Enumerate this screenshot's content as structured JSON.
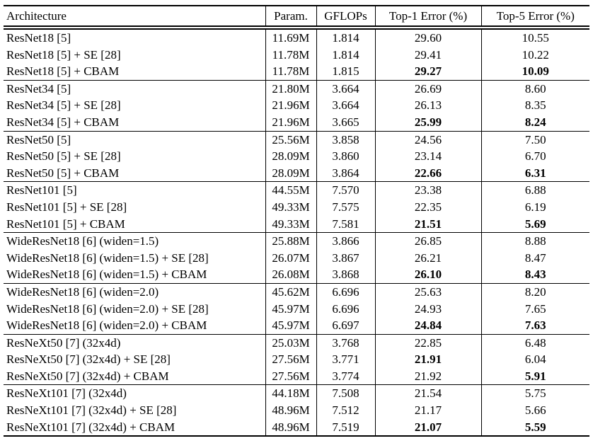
{
  "table": {
    "headers": [
      "Architecture",
      "Param.",
      "GFLOPs",
      "Top-1 Error (%)",
      "Top-5 Error (%)"
    ],
    "groups": [
      {
        "rows": [
          {
            "arch": "ResNet18 [5]",
            "param": "11.69M",
            "gflops": "1.814",
            "top1": "29.60",
            "top5": "10.55",
            "top1_bold": false,
            "top5_bold": false
          },
          {
            "arch": "ResNet18 [5] + SE [28]",
            "param": "11.78M",
            "gflops": "1.814",
            "top1": "29.41",
            "top5": "10.22",
            "top1_bold": false,
            "top5_bold": false
          },
          {
            "arch": "ResNet18 [5] + CBAM",
            "param": "11.78M",
            "gflops": "1.815",
            "top1": "29.27",
            "top5": "10.09",
            "top1_bold": true,
            "top5_bold": true
          }
        ]
      },
      {
        "rows": [
          {
            "arch": "ResNet34 [5]",
            "param": "21.80M",
            "gflops": "3.664",
            "top1": "26.69",
            "top5": "8.60",
            "top1_bold": false,
            "top5_bold": false
          },
          {
            "arch": "ResNet34 [5] + SE [28]",
            "param": "21.96M",
            "gflops": "3.664",
            "top1": "26.13",
            "top5": "8.35",
            "top1_bold": false,
            "top5_bold": false
          },
          {
            "arch": "ResNet34 [5] + CBAM",
            "param": "21.96M",
            "gflops": "3.665",
            "top1": "25.99",
            "top5": "8.24",
            "top1_bold": true,
            "top5_bold": true
          }
        ]
      },
      {
        "rows": [
          {
            "arch": "ResNet50 [5]",
            "param": "25.56M",
            "gflops": "3.858",
            "top1": "24.56",
            "top5": "7.50",
            "top1_bold": false,
            "top5_bold": false
          },
          {
            "arch": "ResNet50 [5] + SE [28]",
            "param": "28.09M",
            "gflops": "3.860",
            "top1": "23.14",
            "top5": "6.70",
            "top1_bold": false,
            "top5_bold": false
          },
          {
            "arch": "ResNet50 [5] + CBAM",
            "param": "28.09M",
            "gflops": "3.864",
            "top1": "22.66",
            "top5": "6.31",
            "top1_bold": true,
            "top5_bold": true
          }
        ]
      },
      {
        "rows": [
          {
            "arch": "ResNet101 [5]",
            "param": "44.55M",
            "gflops": "7.570",
            "top1": "23.38",
            "top5": "6.88",
            "top1_bold": false,
            "top5_bold": false
          },
          {
            "arch": "ResNet101 [5] + SE [28]",
            "param": "49.33M",
            "gflops": "7.575",
            "top1": "22.35",
            "top5": "6.19",
            "top1_bold": false,
            "top5_bold": false
          },
          {
            "arch": "ResNet101 [5] + CBAM",
            "param": "49.33M",
            "gflops": "7.581",
            "top1": "21.51",
            "top5": "5.69",
            "top1_bold": true,
            "top5_bold": true
          }
        ]
      },
      {
        "rows": [
          {
            "arch": "WideResNet18 [6] (widen=1.5)",
            "param": "25.88M",
            "gflops": "3.866",
            "top1": "26.85",
            "top5": "8.88",
            "top1_bold": false,
            "top5_bold": false
          },
          {
            "arch": "WideResNet18 [6] (widen=1.5) + SE [28]",
            "param": "26.07M",
            "gflops": "3.867",
            "top1": "26.21",
            "top5": "8.47",
            "top1_bold": false,
            "top5_bold": false
          },
          {
            "arch": "WideResNet18 [6] (widen=1.5) + CBAM",
            "param": "26.08M",
            "gflops": "3.868",
            "top1": "26.10",
            "top5": "8.43",
            "top1_bold": true,
            "top5_bold": true
          }
        ]
      },
      {
        "rows": [
          {
            "arch": "WideResNet18 [6] (widen=2.0)",
            "param": "45.62M",
            "gflops": "6.696",
            "top1": "25.63",
            "top5": "8.20",
            "top1_bold": false,
            "top5_bold": false
          },
          {
            "arch": "WideResNet18 [6] (widen=2.0) + SE [28]",
            "param": "45.97M",
            "gflops": "6.696",
            "top1": "24.93",
            "top5": "7.65",
            "top1_bold": false,
            "top5_bold": false
          },
          {
            "arch": "WideResNet18 [6] (widen=2.0) + CBAM",
            "param": "45.97M",
            "gflops": "6.697",
            "top1": "24.84",
            "top5": "7.63",
            "top1_bold": true,
            "top5_bold": true
          }
        ]
      },
      {
        "rows": [
          {
            "arch": "ResNeXt50 [7] (32x4d)",
            "param": "25.03M",
            "gflops": "3.768",
            "top1": "22.85",
            "top5": "6.48",
            "top1_bold": false,
            "top5_bold": false
          },
          {
            "arch": "ResNeXt50 [7] (32x4d) + SE [28]",
            "param": "27.56M",
            "gflops": "3.771",
            "top1": "21.91",
            "top5": "6.04",
            "top1_bold": true,
            "top5_bold": false
          },
          {
            "arch": "ResNeXt50 [7] (32x4d) + CBAM",
            "param": "27.56M",
            "gflops": "3.774",
            "top1": "21.92",
            "top5": "5.91",
            "top1_bold": false,
            "top5_bold": true
          }
        ]
      },
      {
        "rows": [
          {
            "arch": "ResNeXt101 [7] (32x4d)",
            "param": "44.18M",
            "gflops": "7.508",
            "top1": "21.54",
            "top5": "5.75",
            "top1_bold": false,
            "top5_bold": false
          },
          {
            "arch": "ResNeXt101 [7] (32x4d) + SE [28]",
            "param": "48.96M",
            "gflops": "7.512",
            "top1": "21.17",
            "top5": "5.66",
            "top1_bold": false,
            "top5_bold": false
          },
          {
            "arch": "ResNeXt101 [7] (32x4d) + CBAM",
            "param": "48.96M",
            "gflops": "7.519",
            "top1": "21.07",
            "top5": "5.59",
            "top1_bold": true,
            "top5_bold": true
          }
        ]
      }
    ]
  }
}
